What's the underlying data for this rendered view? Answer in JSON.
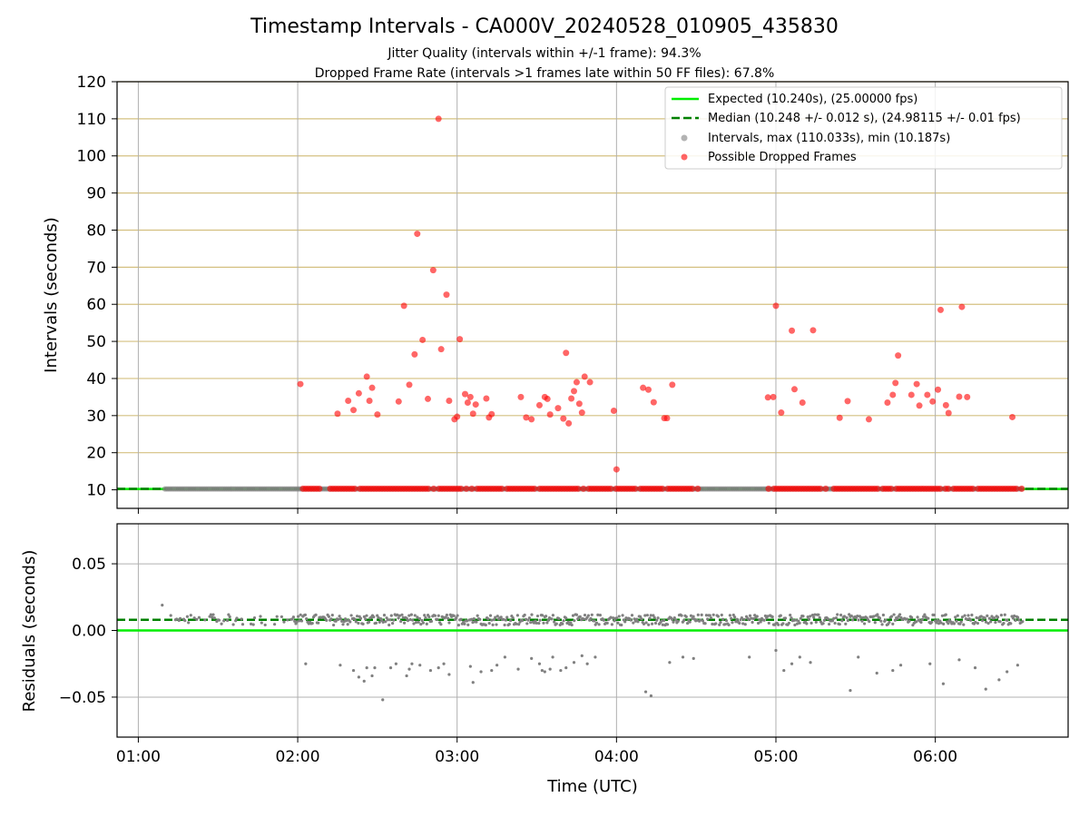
{
  "figure": {
    "title": "Timestamp Intervals - CA000V_20240528_010905_435830",
    "subtitle_1": "Jitter Quality (intervals within +/-1 frame): 94.3%",
    "subtitle_2": "Dropped Frame Rate (intervals >1 frames late within 50 FF files): 67.8%",
    "xlabel": "Time (UTC)"
  },
  "colors": {
    "expected": "#00ee00",
    "median": "#008000",
    "intervals": "#808080",
    "dropped": "#ff0000",
    "hgrid_top": "#d4c080",
    "grid": "#b0b0b0"
  },
  "chart_data": [
    {
      "type": "scatter",
      "name": "intervals",
      "ylabel": "Intervals (seconds)",
      "xlim": [
        "00:52",
        "06:50"
      ],
      "ylim": [
        5,
        120
      ],
      "yticks": [
        "10",
        "20",
        "30",
        "40",
        "50",
        "60",
        "70",
        "80",
        "90",
        "100",
        "110",
        "120"
      ],
      "xticks": [
        "01:00",
        "02:00",
        "03:00",
        "04:00",
        "05:00",
        "06:00"
      ],
      "grid": true,
      "legend_position": "top-right",
      "legend": [
        "Expected (10.240s), (25.00000 fps)",
        "Median (10.248 +/- 0.012 s), (24.98115 +/- 0.01 fps)",
        "Intervals, max (110.033s), min (10.187s)",
        "Possible Dropped Frames"
      ],
      "expected_value": 10.24,
      "median_value": 10.248,
      "interval_points_range": {
        "x_start": "01:10",
        "x_end": "06:33",
        "y": 10.24
      },
      "dropped_points": {
        "x": [
          "02:01",
          "02:15",
          "02:19",
          "02:21",
          "02:23",
          "02:26",
          "02:27",
          "02:28",
          "02:30",
          "02:38",
          "02:40",
          "02:42",
          "02:44",
          "02:45",
          "02:47",
          "02:49",
          "02:51",
          "02:53",
          "02:54",
          "02:56",
          "02:57",
          "02:59",
          "03:00",
          "03:01",
          "03:03",
          "03:04",
          "03:05",
          "03:06",
          "03:07",
          "03:11",
          "03:12",
          "03:13",
          "03:24",
          "03:26",
          "03:28",
          "03:31",
          "03:33",
          "03:34",
          "03:35",
          "03:38",
          "03:40",
          "03:41",
          "03:42",
          "03:43",
          "03:44",
          "03:45",
          "03:46",
          "03:47",
          "03:48",
          "03:50",
          "03:59",
          "04:00",
          "04:10",
          "04:12",
          "04:14",
          "04:18",
          "04:19",
          "04:21",
          "04:57",
          "04:59",
          "05:00",
          "05:02",
          "05:06",
          "05:07",
          "05:10",
          "05:14",
          "05:24",
          "05:27",
          "05:35",
          "05:42",
          "05:44",
          "05:45",
          "05:46",
          "05:51",
          "05:53",
          "05:54",
          "05:57",
          "05:59",
          "06:01",
          "06:02",
          "06:04",
          "06:05",
          "06:09",
          "06:10",
          "06:12",
          "06:29"
        ],
        "y": [
          38.5,
          30.5,
          34,
          31.5,
          36,
          40.5,
          34,
          37.5,
          30.3,
          33.8,
          59.6,
          38.3,
          46.5,
          79,
          50.4,
          34.5,
          69.2,
          110,
          47.9,
          62.6,
          34,
          29,
          29.7,
          50.6,
          35.8,
          33.5,
          35,
          30.5,
          33,
          34.6,
          29.5,
          30.4,
          35,
          29.5,
          29,
          32.8,
          35,
          34.5,
          30.3,
          32,
          29.2,
          46.9,
          27.9,
          34.6,
          36.6,
          39,
          33.2,
          30.8,
          40.5,
          39,
          31.3,
          15.5,
          37.5,
          37,
          33.6,
          29.3,
          29.3,
          38.3,
          34.9,
          35,
          59.6,
          30.8,
          52.9,
          37.1,
          33.5,
          53,
          29.4,
          33.9,
          29,
          33.5,
          35.6,
          38.8,
          46.2,
          35.6,
          38.5,
          32.7,
          35.6,
          33.8,
          37,
          58.5,
          32.8,
          30.7,
          35.1,
          59.3,
          35,
          29.6
        ]
      },
      "dropped_near_baseline": {
        "x_start": "02:02",
        "x_end": "06:33",
        "y": 10.3
      }
    },
    {
      "type": "scatter",
      "name": "residuals",
      "ylabel": "Residuals (seconds)",
      "xlim": [
        "00:52",
        "06:50"
      ],
      "ylim": [
        -0.08,
        0.08
      ],
      "yticks": [
        "0.05",
        "0.00",
        "−0.05"
      ],
      "xticks": [
        "01:00",
        "02:00",
        "03:00",
        "04:00",
        "05:00",
        "06:00"
      ],
      "grid": true,
      "expected_value": 0.0,
      "median_value": 0.008,
      "residual_band": {
        "x_start": "01:10",
        "x_end": "06:33",
        "y_center": 0.008,
        "spread": 0.004
      },
      "outliers": {
        "x": [
          "01:09",
          "02:03",
          "02:16",
          "02:21",
          "02:23",
          "02:25",
          "02:26",
          "02:28",
          "02:29",
          "02:32",
          "02:35",
          "02:37",
          "02:41",
          "02:42",
          "02:43",
          "02:46",
          "02:50",
          "02:53",
          "02:55",
          "02:57",
          "03:05",
          "03:06",
          "03:09",
          "03:13",
          "03:15",
          "03:18",
          "03:23",
          "03:28",
          "03:31",
          "03:32",
          "03:33",
          "03:35",
          "03:36",
          "03:39",
          "03:41",
          "03:44",
          "03:47",
          "03:49",
          "03:52",
          "04:11",
          "04:13",
          "04:20",
          "04:25",
          "04:29",
          "04:50",
          "05:00",
          "05:03",
          "05:06",
          "05:09",
          "05:13",
          "05:28",
          "05:31",
          "05:38",
          "05:44",
          "05:47",
          "05:58",
          "06:03",
          "06:09",
          "06:15",
          "06:19",
          "06:24",
          "06:27",
          "06:31"
        ],
        "y": [
          0.019,
          -0.025,
          -0.026,
          -0.03,
          -0.035,
          -0.038,
          -0.028,
          -0.034,
          -0.028,
          -0.052,
          -0.028,
          -0.025,
          -0.034,
          -0.029,
          -0.025,
          -0.026,
          -0.03,
          -0.028,
          -0.025,
          -0.033,
          -0.027,
          -0.039,
          -0.031,
          -0.03,
          -0.026,
          -0.02,
          -0.029,
          -0.021,
          -0.025,
          -0.03,
          -0.031,
          -0.029,
          -0.02,
          -0.03,
          -0.028,
          -0.024,
          -0.019,
          -0.025,
          -0.02,
          -0.046,
          -0.049,
          -0.024,
          -0.02,
          -0.021,
          -0.02,
          -0.015,
          -0.03,
          -0.025,
          -0.02,
          -0.024,
          -0.045,
          -0.02,
          -0.032,
          -0.03,
          -0.026,
          -0.025,
          -0.04,
          -0.022,
          -0.028,
          -0.044,
          -0.037,
          -0.031,
          -0.026
        ]
      }
    }
  ]
}
